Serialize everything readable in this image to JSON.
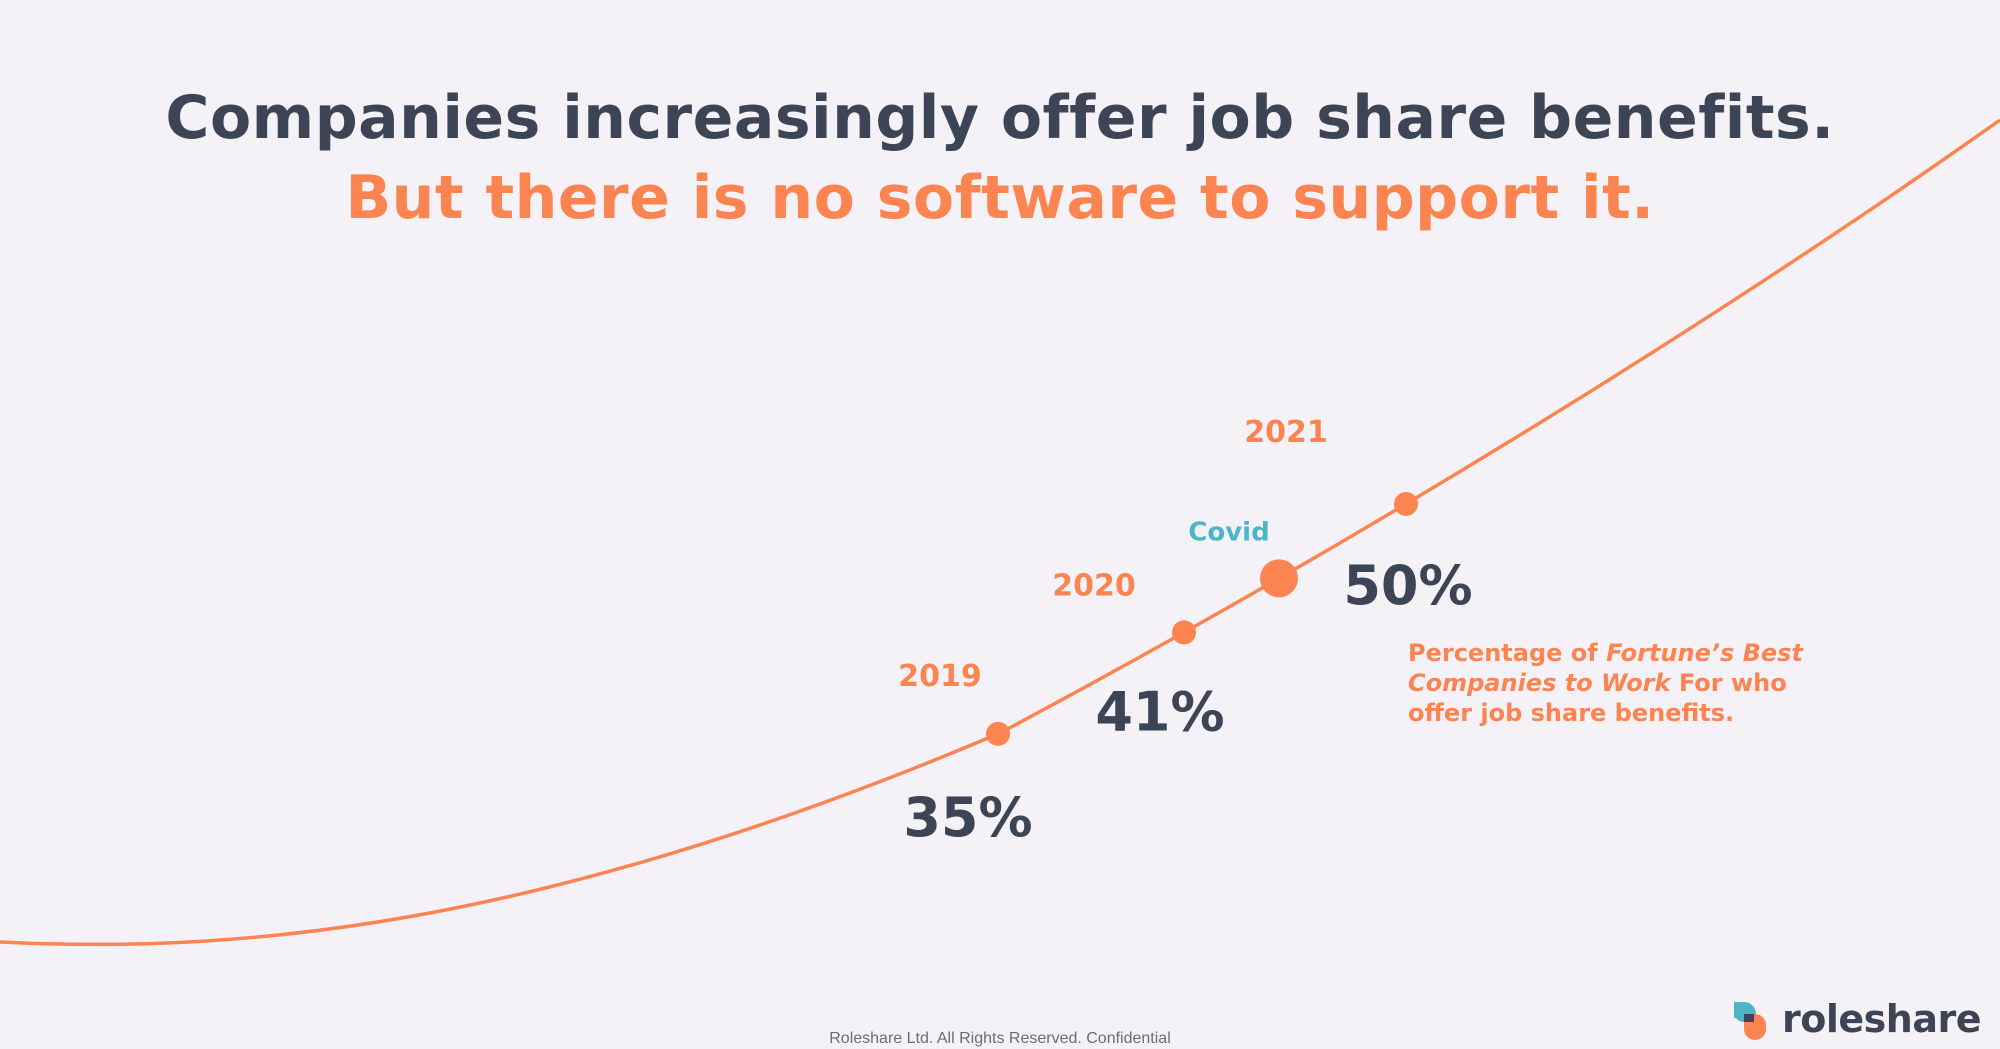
{
  "headline": {
    "line1": "Companies increasingly offer job share benefits.",
    "line2": "But there is no software to support it."
  },
  "chart_data": {
    "type": "line",
    "x": [
      "2019",
      "2020",
      "2021"
    ],
    "values": [
      35,
      41,
      50
    ],
    "value_labels": [
      "35%",
      "41%",
      "50%"
    ],
    "annotations": [
      {
        "text": "Covid",
        "color": "#4cb6c8"
      }
    ],
    "caption": {
      "prefix": "Percentage of ",
      "italic": "Fortune’s Best Companies to Work",
      "suffix": " For who offer job share benefits."
    },
    "colors": {
      "line": "#fb8451",
      "year": "#fb8451",
      "value": "#3d4455",
      "annotation": "#4cb6c8"
    },
    "grid": false
  },
  "footer": {
    "text": "Roleshare Ltd. All Rights Reserved. Confidential"
  },
  "logo": {
    "text": "roleshare",
    "colors": [
      "#4cb6c8",
      "#fb8451",
      "#3d4455"
    ]
  }
}
